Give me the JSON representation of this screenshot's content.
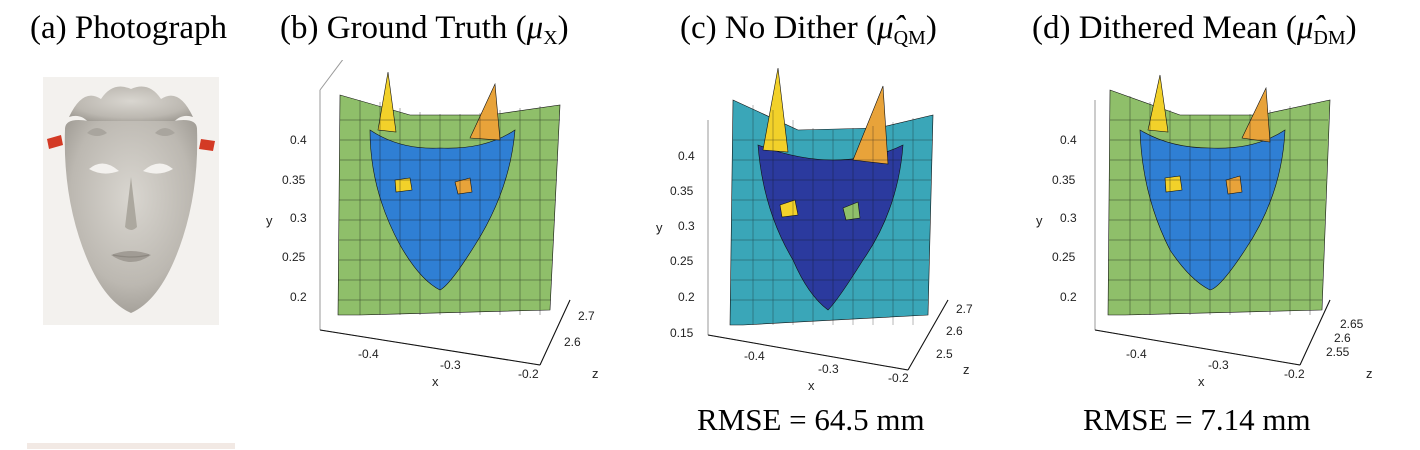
{
  "panels": [
    {
      "letter": "(a)",
      "title": "Photograph"
    },
    {
      "letter": "(b)",
      "title": "Ground Truth",
      "math": "μ",
      "sub": "X"
    },
    {
      "letter": "(c)",
      "title": "No Dither",
      "math": "μ̂",
      "sub": "QM"
    },
    {
      "letter": "(d)",
      "title": "Dithered Mean",
      "math": "μ̂",
      "sub": "DM"
    }
  ],
  "rmse": {
    "c": "RMSE = 64.5 mm",
    "d": "RMSE = 7.14 mm"
  },
  "axes": {
    "x_label": "x",
    "y_label": "y",
    "z_label": "z",
    "b": {
      "y_ticks": [
        "0.4",
        "0.35",
        "0.3",
        "0.25",
        "0.2"
      ],
      "x_ticks": [
        "-0.4",
        "-0.3",
        "-0.2"
      ],
      "z_ticks": [
        "2.7",
        "2.6"
      ]
    },
    "c": {
      "y_ticks": [
        "0.4",
        "0.35",
        "0.3",
        "0.25",
        "0.2",
        "0.15"
      ],
      "x_ticks": [
        "-0.4",
        "-0.3",
        "-0.2"
      ],
      "z_ticks": [
        "2.7",
        "2.6",
        "2.5"
      ]
    },
    "d": {
      "y_ticks": [
        "0.4",
        "0.35",
        "0.3",
        "0.25",
        "0.2"
      ],
      "x_ticks": [
        "-0.4",
        "-0.3",
        "-0.2"
      ],
      "z_ticks": [
        "2.65",
        "2.6",
        "2.55"
      ]
    }
  },
  "colors": {
    "background_plane": "#8fbf6a",
    "mask_face": "#2f7fd4",
    "mask_deep": "#2b3a9e",
    "spike_yellow": "#f2d12a",
    "spike_orange": "#e8a33a",
    "grid_line": "#111111"
  }
}
